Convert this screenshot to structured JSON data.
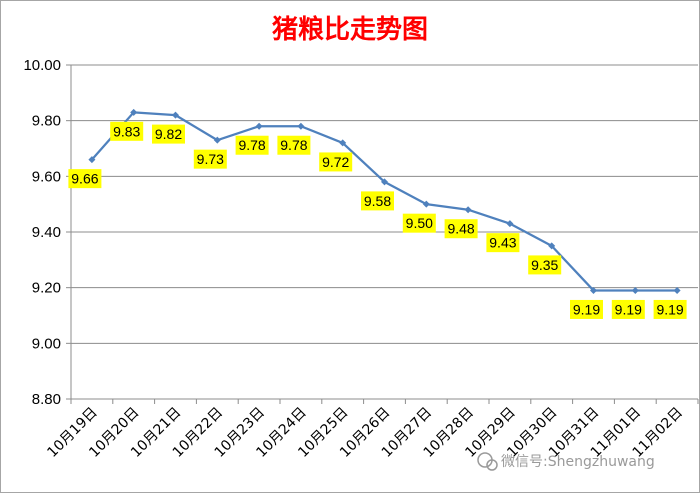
{
  "chart_data": {
    "type": "line",
    "title": "猪粮比走势图",
    "categories": [
      "10月19日",
      "10月20日",
      "10月21日",
      "10月22日",
      "10月23日",
      "10月24日",
      "10月25日",
      "10月26日",
      "10月27日",
      "10月28日",
      "10月29日",
      "10月30日",
      "10月31日",
      "11月01日",
      "11月02日"
    ],
    "values": [
      9.66,
      9.83,
      9.82,
      9.73,
      9.78,
      9.78,
      9.72,
      9.58,
      9.5,
      9.48,
      9.43,
      9.35,
      9.19,
      9.19,
      9.19
    ],
    "value_labels": [
      "9.66",
      "9.83",
      "9.82",
      "9.73",
      "9.78",
      "9.78",
      "9.72",
      "9.58",
      "9.50",
      "9.48",
      "9.43",
      "9.35",
      "9.19",
      "9.19",
      "9.19"
    ],
    "ylim": [
      8.8,
      10.0
    ],
    "yticks": [
      "8.80",
      "9.00",
      "9.20",
      "9.40",
      "9.60",
      "9.80",
      "10.00"
    ],
    "xlabel": "",
    "ylabel": "",
    "grid": true,
    "legend": "none",
    "line_color": "#4f81bd",
    "label_background": "#ffff00"
  },
  "watermark": "微信号:Shengzhuwang"
}
